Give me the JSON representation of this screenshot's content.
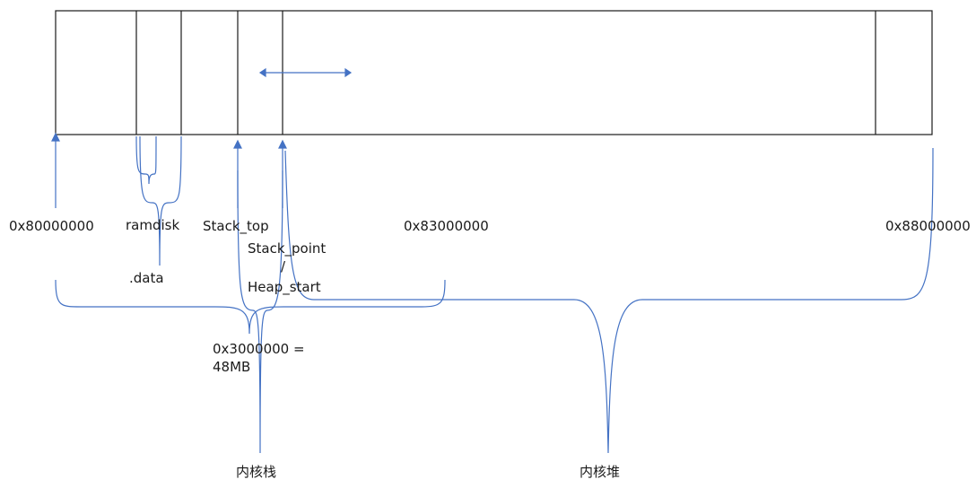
{
  "labels": {
    "addr_start": "0x80000000",
    "ramdisk": "ramdisk",
    "data_section": ".data",
    "stack_top": "Stack_top",
    "stack_point": "Stack_point",
    "slash": "/",
    "heap_start": "Heap_start",
    "addr_mid": "0x83000000",
    "addr_end": "0x88000000",
    "size_line1": "0x3000000 =",
    "size_line2": "48MB",
    "kernel_stack": "内核栈",
    "kernel_heap": "内核堆"
  },
  "colors": {
    "box_stroke": "#1a1a1a",
    "annotation_stroke": "#4472c4"
  }
}
